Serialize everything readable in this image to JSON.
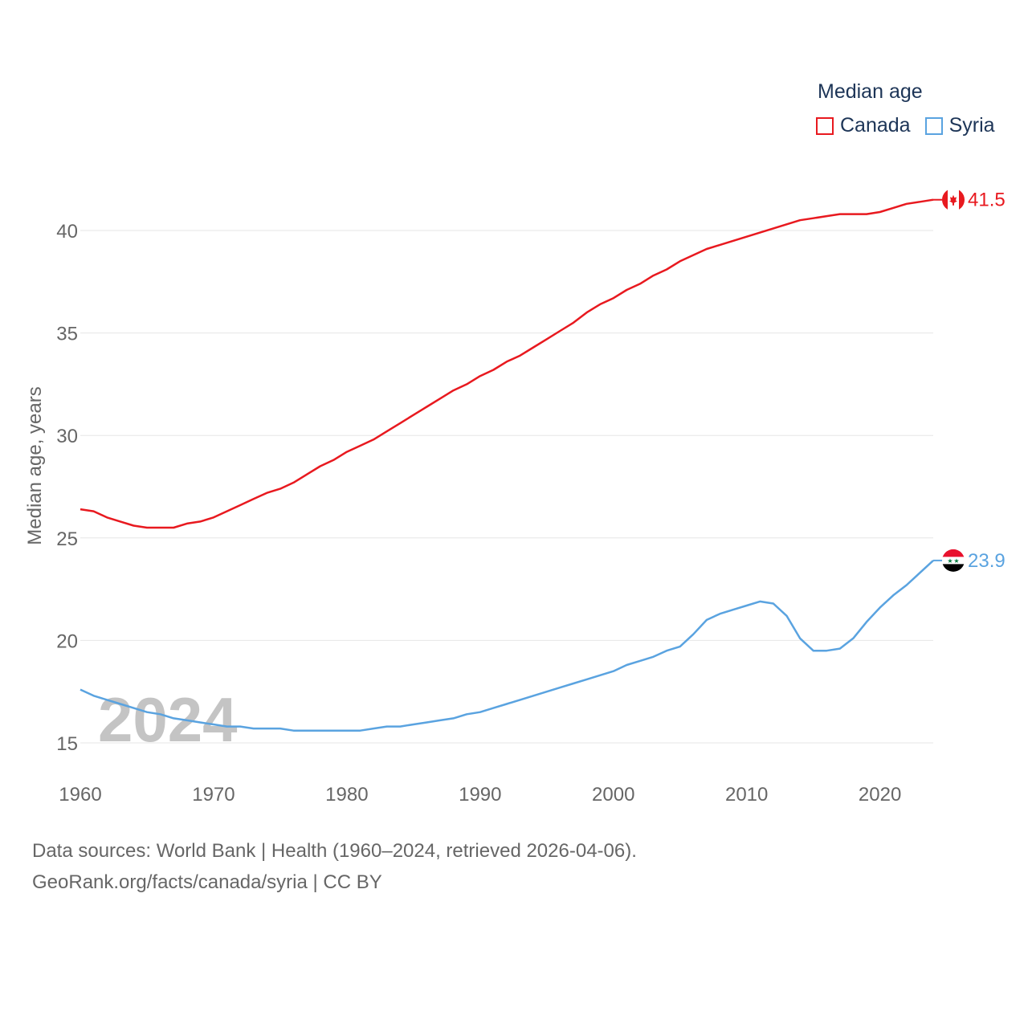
{
  "legend": {
    "title": "Median age",
    "items": [
      {
        "label": "Canada",
        "color": "#e8191f"
      },
      {
        "label": "Syria",
        "color": "#5aa3e0"
      }
    ]
  },
  "footer": {
    "line1": "Data sources: World Bank | Health (1960–2024, retrieved 2026-04-06).",
    "line2": "GeoRank.org/facts/canada/syria | CC BY"
  },
  "chart_data": {
    "type": "line",
    "title": "Median age",
    "ylabel": "Median age, years",
    "xlabel": "",
    "watermark": "2024",
    "xlim": [
      1960,
      2024
    ],
    "ylim": [
      13.5,
      43.5
    ],
    "xticks": [
      1960,
      1970,
      1980,
      1990,
      2000,
      2010,
      2020
    ],
    "yticks": [
      15,
      20,
      25,
      30,
      35,
      40
    ],
    "grid": true,
    "x": [
      1960,
      1961,
      1962,
      1963,
      1964,
      1965,
      1966,
      1967,
      1968,
      1969,
      1970,
      1971,
      1972,
      1973,
      1974,
      1975,
      1976,
      1977,
      1978,
      1979,
      1980,
      1981,
      1982,
      1983,
      1984,
      1985,
      1986,
      1987,
      1988,
      1989,
      1990,
      1991,
      1992,
      1993,
      1994,
      1995,
      1996,
      1997,
      1998,
      1999,
      2000,
      2001,
      2002,
      2003,
      2004,
      2005,
      2006,
      2007,
      2008,
      2009,
      2010,
      2011,
      2012,
      2013,
      2014,
      2015,
      2016,
      2017,
      2018,
      2019,
      2020,
      2021,
      2022,
      2023,
      2024
    ],
    "series": [
      {
        "name": "Canada",
        "color": "#e8191f",
        "end_label": "41.5",
        "values": [
          26.4,
          26.3,
          26.0,
          25.8,
          25.6,
          25.5,
          25.5,
          25.5,
          25.7,
          25.8,
          26.0,
          26.3,
          26.6,
          26.9,
          27.2,
          27.4,
          27.7,
          28.1,
          28.5,
          28.8,
          29.2,
          29.5,
          29.8,
          30.2,
          30.6,
          31.0,
          31.4,
          31.8,
          32.2,
          32.5,
          32.9,
          33.2,
          33.6,
          33.9,
          34.3,
          34.7,
          35.1,
          35.5,
          36.0,
          36.4,
          36.7,
          37.1,
          37.4,
          37.8,
          38.1,
          38.5,
          38.8,
          39.1,
          39.3,
          39.5,
          39.7,
          39.9,
          40.1,
          40.3,
          40.5,
          40.6,
          40.7,
          40.8,
          40.8,
          40.8,
          40.9,
          41.1,
          41.3,
          41.4,
          41.5
        ]
      },
      {
        "name": "Syria",
        "color": "#5aa3e0",
        "end_label": "23.9",
        "values": [
          17.6,
          17.3,
          17.1,
          16.9,
          16.7,
          16.5,
          16.4,
          16.2,
          16.1,
          16.0,
          15.9,
          15.8,
          15.8,
          15.7,
          15.7,
          15.7,
          15.6,
          15.6,
          15.6,
          15.6,
          15.6,
          15.6,
          15.7,
          15.8,
          15.8,
          15.9,
          16.0,
          16.1,
          16.2,
          16.4,
          16.5,
          16.7,
          16.9,
          17.1,
          17.3,
          17.5,
          17.7,
          17.9,
          18.1,
          18.3,
          18.5,
          18.8,
          19.0,
          19.2,
          19.5,
          19.7,
          20.3,
          21.0,
          21.3,
          21.5,
          21.7,
          21.9,
          21.8,
          21.2,
          20.1,
          19.5,
          19.5,
          19.6,
          20.1,
          20.9,
          21.6,
          22.2,
          22.7,
          23.3,
          23.9
        ]
      }
    ]
  }
}
